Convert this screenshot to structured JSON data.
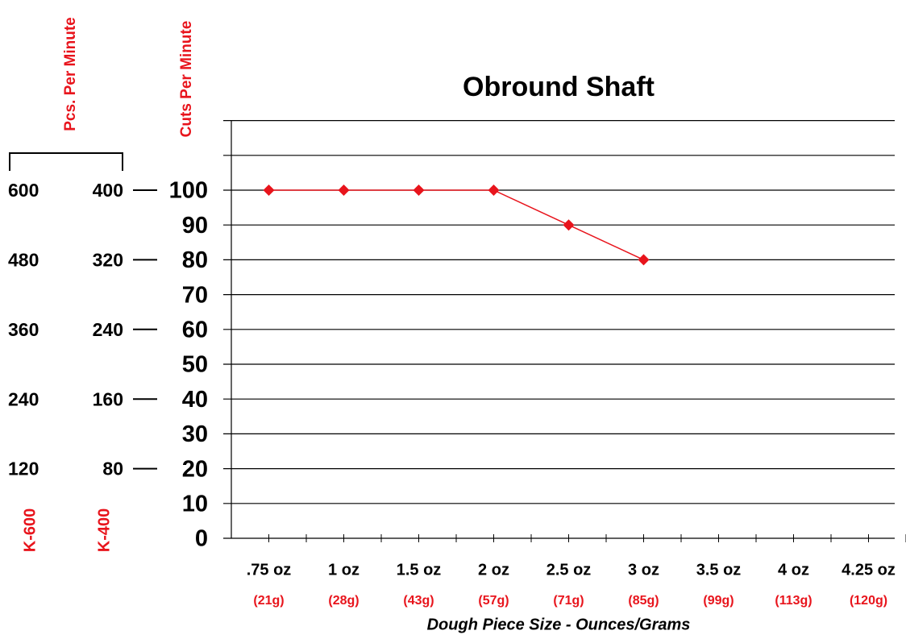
{
  "chart_data": {
    "type": "line",
    "title": "Obround Shaft",
    "ylabel": "Cuts Per Minute",
    "y2label": "Pcs. Per Minute",
    "xlabel": "Dough Piece Size - Ounces/Grams",
    "categories": [
      ".75 oz",
      "1 oz",
      "1.5 oz",
      "2 oz",
      "2.5 oz",
      "3 oz",
      "3.5 oz",
      "4 oz",
      "4.25 oz"
    ],
    "category_sublabels": [
      "(21g)",
      "(28g)",
      "(43g)",
      "(57g)",
      "(71g)",
      "(85g)",
      "(99g)",
      "(113g)",
      "(120g)"
    ],
    "series": [
      {
        "name": "Obround Shaft",
        "color": "#e8141c",
        "values": [
          100,
          100,
          100,
          100,
          90,
          80,
          null,
          null,
          null
        ]
      }
    ],
    "ylim": [
      0,
      120
    ],
    "yticks": [
      0,
      10,
      20,
      30,
      40,
      50,
      60,
      70,
      80,
      90,
      100
    ],
    "ygrid": [
      10,
      20,
      30,
      40,
      50,
      60,
      70,
      80,
      90,
      100,
      110,
      120
    ],
    "y2name": "K-400",
    "y2lim": [
      0,
      480
    ],
    "y2ticks": [
      80,
      160,
      240,
      320,
      400
    ],
    "y3name": "K-600",
    "y3lim": [
      0,
      720
    ],
    "y3ticks": [
      120,
      240,
      360,
      480,
      600
    ]
  }
}
